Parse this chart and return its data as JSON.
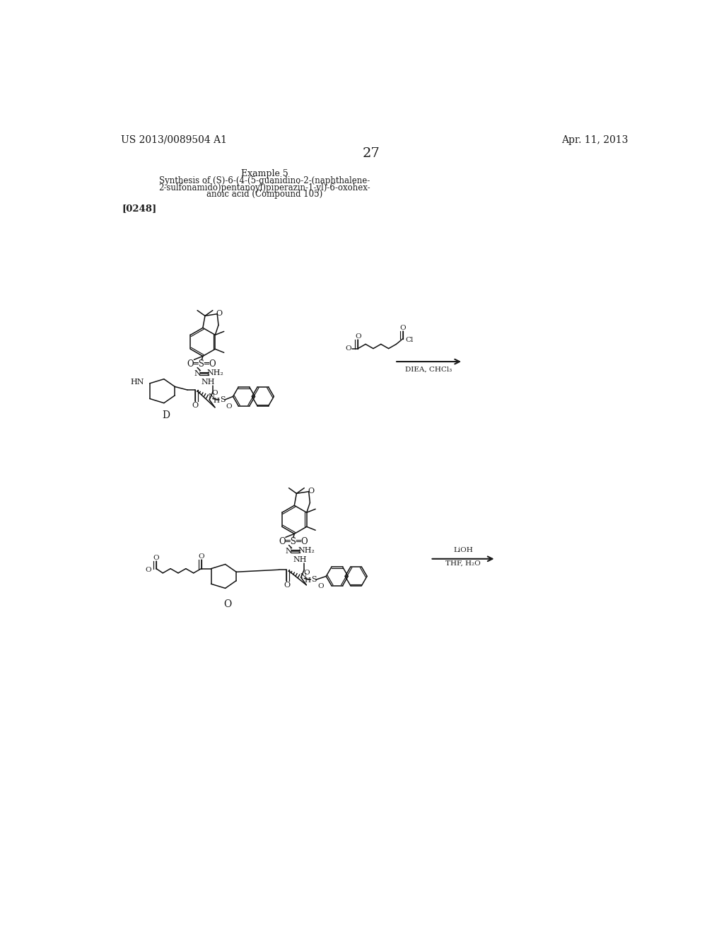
{
  "page_number": "27",
  "patent_number": "US 2013/0089504 A1",
  "patent_date": "Apr. 11, 2013",
  "example_title": "Example 5",
  "synth_line1": "Synthesis of (S)-6-(4-(5-guanidino-2-(naphthalene-",
  "synth_line2": "2-sulfonamido)pentanoyl)piperazin-1-yl)-6-oxohex-",
  "synth_line3": "anoic acid (Compound 105)",
  "paragraph_ref": "[0248]",
  "reagent1_line1": "DIEA, CHCl",
  "reagent1_sub": "3",
  "reagent2_line1": "LiOH",
  "reagent2_line2": "THF, H",
  "reagent2_sub": "2",
  "reagent2_end": "O",
  "compound_D": "D",
  "compound_O": "O",
  "background_color": "#ffffff",
  "text_color": "#1a1a1a",
  "fig_width": 10.24,
  "fig_height": 13.2,
  "dpi": 100
}
